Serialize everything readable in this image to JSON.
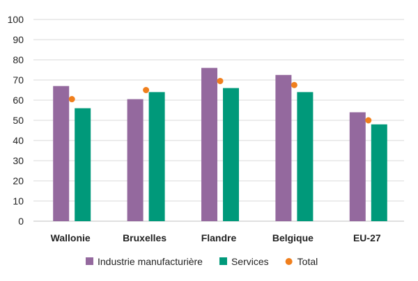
{
  "chart_data": {
    "type": "bar",
    "categories": [
      "Wallonie",
      "Bruxelles",
      "Flandre",
      "Belgique",
      "EU-27"
    ],
    "series": [
      {
        "name": "Industrie manufacturière",
        "values": [
          67,
          60.5,
          76,
          72.5,
          54
        ],
        "color": "#94699e"
      },
      {
        "name": "Services",
        "values": [
          56,
          64,
          66,
          64,
          48
        ],
        "color": "#00997a"
      },
      {
        "name": "Total",
        "values": [
          60.5,
          65,
          69.5,
          67.5,
          50
        ],
        "color": "#f07f1d",
        "mark": "dot"
      }
    ],
    "ylim": [
      0,
      100
    ],
    "yticks": [
      0,
      10,
      20,
      30,
      40,
      50,
      60,
      70,
      80,
      90,
      100
    ],
    "grid": true,
    "legend": "bottom"
  }
}
